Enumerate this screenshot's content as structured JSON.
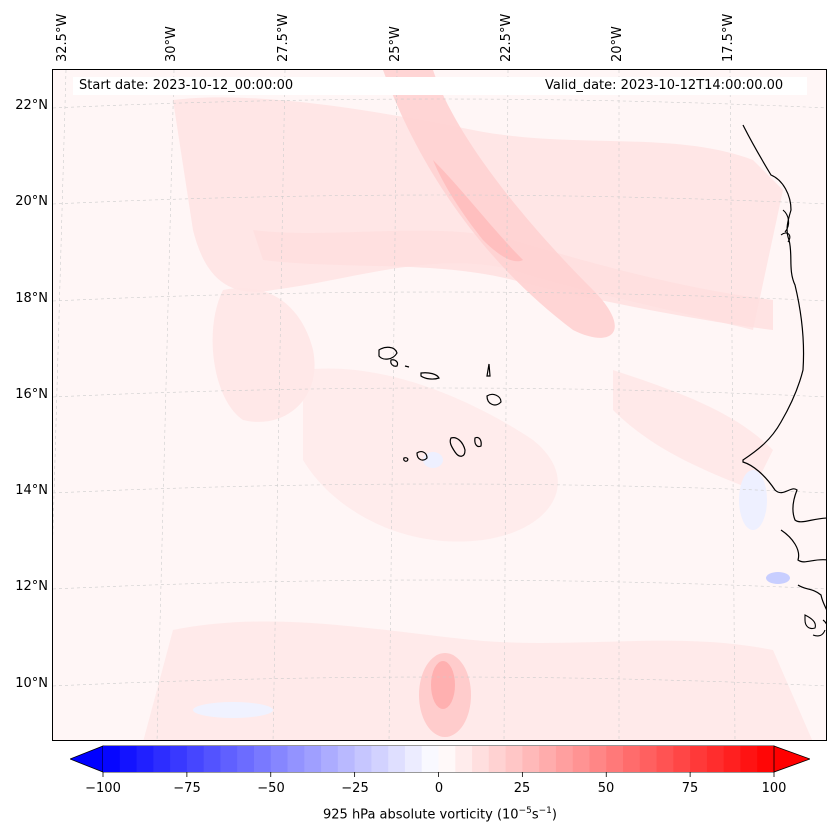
{
  "header": {
    "start_date": "Start date: 2023-10-12_00:00:00",
    "valid_date": "Valid_date: 2023-10-12T14:00:00.00"
  },
  "map": {
    "projection": "Lambert conformal",
    "field": "925 hPa absolute vorticity",
    "region": "Cape Verde islands and West African coast",
    "longitude_labels": [
      "32.5°W",
      "30°W",
      "27.5°W",
      "25°W",
      "22.5°W",
      "20°W",
      "17.5°W"
    ],
    "latitude_labels": [
      "22°N",
      "20°N",
      "18°N",
      "16°N",
      "14°N",
      "12°N",
      "10°N"
    ],
    "gridlines": true,
    "colors": {
      "background": "#fff6f6",
      "light_red": "#ffe1e1",
      "mid_red": "#ffc4c4",
      "light_blue": "#f1f3ff",
      "coastline": "#000000",
      "gridline": "#cccccc"
    }
  },
  "colorbar": {
    "label_prefix": "925 hPa absolute vorticity (10",
    "label_exp1": "−5",
    "label_mid": "s",
    "label_exp2": "−1",
    "label_suffix": ")",
    "min": -100,
    "max": 100,
    "ticks": [
      "−100",
      "−75",
      "−50",
      "−25",
      "0",
      "25",
      "50",
      "75",
      "100"
    ],
    "tick_values": [
      -100,
      -75,
      -50,
      -25,
      0,
      25,
      50,
      75,
      100
    ],
    "colormap": "bwr",
    "extend": "both",
    "colors": {
      "negative": "#0000ff",
      "neutral": "#ffffff",
      "positive": "#ff0000"
    }
  }
}
